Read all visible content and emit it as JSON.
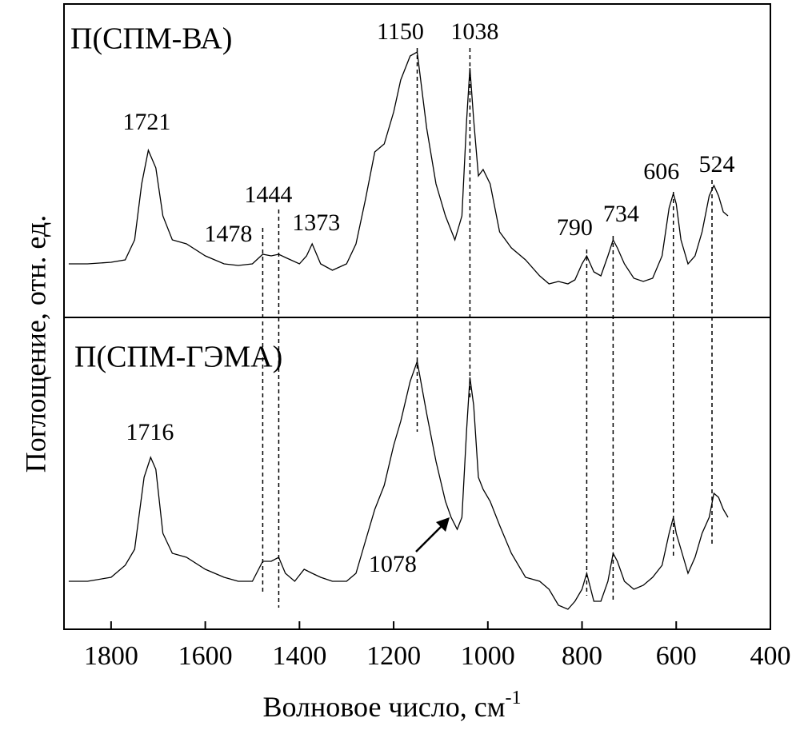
{
  "chart_data": [
    {
      "type": "line",
      "title": "П(СПМ-ВА)",
      "ylabel": "Поглощение, отн. ед.",
      "ylim": [
        0,
        392
      ],
      "series": [
        {
          "color": "#000000",
          "x": [
            490,
            500,
            510,
            520,
            530,
            545,
            560,
            575,
            590,
            600,
            606,
            615,
            630,
            650,
            670,
            690,
            710,
            725,
            734,
            745,
            760,
            775,
            790,
            800,
            815,
            830,
            850,
            870,
            890,
            920,
            950,
            975,
            995,
            1010,
            1020,
            1030,
            1038,
            1045,
            1055,
            1070,
            1090,
            1110,
            1130,
            1150,
            1165,
            1185,
            1200,
            1220,
            1240,
            1260,
            1280,
            1300,
            1330,
            1355,
            1373,
            1385,
            1400,
            1430,
            1444,
            1460,
            1478,
            1500,
            1530,
            1560,
            1600,
            1640,
            1670,
            1690,
            1705,
            1721,
            1735,
            1750,
            1770,
            1800,
            1850,
            1890
          ],
          "values": [
            127,
            132,
            152,
            165,
            152,
            107,
            77,
            67,
            97,
            142,
            155,
            137,
            77,
            49,
            45,
            49,
            67,
            87,
            97,
            77,
            52,
            57,
            77,
            67,
            47,
            42,
            45,
            42,
            52,
            72,
            87,
            107,
            167,
            185,
            177,
            247,
            312,
            247,
            127,
            97,
            127,
            167,
            237,
            332,
            327,
            297,
            257,
            217,
            207,
            147,
            92,
            67,
            59,
            67,
            92,
            77,
            67,
            75,
            79,
            77,
            79,
            67,
            65,
            67,
            77,
            92,
            97,
            127,
            187,
            209,
            167,
            97,
            72,
            69,
            67,
            67
          ]
        }
      ],
      "peaks": [
        1721,
        1478,
        1444,
        1373,
        1150,
        1038,
        790,
        734,
        606,
        524
      ]
    },
    {
      "type": "line",
      "title": "П(СПМ-ГЭМА)",
      "xlabel": {
        "text": "Волновое число, см",
        "superscript": "-1"
      },
      "xlim": [
        1900,
        400
      ],
      "xticks": [
        1800,
        1600,
        1400,
        1200,
        1000,
        800,
        600,
        400
      ],
      "ylim": [
        0,
        390
      ],
      "series": [
        {
          "color": "#000000",
          "x": [
            490,
            500,
            510,
            520,
            530,
            545,
            560,
            575,
            590,
            600,
            606,
            615,
            630,
            650,
            670,
            690,
            710,
            725,
            734,
            745,
            760,
            775,
            790,
            800,
            815,
            830,
            850,
            870,
            890,
            920,
            950,
            975,
            995,
            1010,
            1020,
            1030,
            1038,
            1045,
            1055,
            1065,
            1078,
            1090,
            1110,
            1130,
            1150,
            1165,
            1185,
            1200,
            1220,
            1240,
            1260,
            1280,
            1300,
            1330,
            1355,
            1373,
            1390,
            1410,
            1430,
            1444,
            1460,
            1478,
            1500,
            1530,
            1560,
            1600,
            1640,
            1670,
            1690,
            1705,
            1716,
            1730,
            1750,
            1770,
            1800,
            1850,
            1890
          ],
          "values": [
            140,
            150,
            165,
            170,
            140,
            120,
            90,
            70,
            100,
            120,
            140,
            120,
            80,
            65,
            55,
            50,
            60,
            85,
            95,
            60,
            35,
            35,
            70,
            50,
            35,
            25,
            30,
            50,
            60,
            65,
            95,
            130,
            160,
            175,
            190,
            280,
            315,
            250,
            140,
            125,
            140,
            160,
            210,
            270,
            335,
            310,
            260,
            230,
            180,
            150,
            110,
            70,
            60,
            60,
            65,
            70,
            75,
            60,
            70,
            90,
            85,
            85,
            60,
            60,
            65,
            75,
            90,
            95,
            120,
            200,
            215,
            190,
            100,
            80,
            65,
            60,
            60
          ]
        }
      ],
      "peaks": [
        1716,
        1078
      ]
    }
  ]
}
